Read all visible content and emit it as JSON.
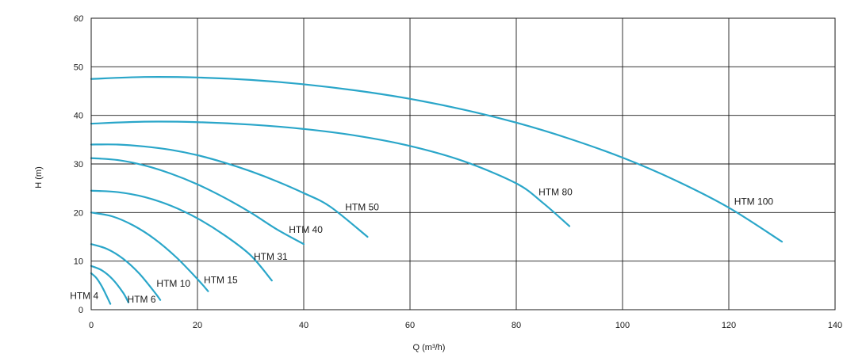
{
  "chart_data": {
    "type": "line",
    "title": "",
    "xlabel": "Q (m³/h)",
    "ylabel": "H (m)",
    "xlim": [
      0,
      140
    ],
    "ylim": [
      0,
      60
    ],
    "x_ticks": [
      0,
      20,
      40,
      60,
      80,
      100,
      120,
      140
    ],
    "y_ticks": [
      0,
      10,
      20,
      30,
      40,
      50,
      60
    ],
    "x_tick_labels": [
      "0",
      "20",
      "40",
      "60",
      "80",
      "100",
      "120",
      "140"
    ],
    "y_tick_labels": [
      "0",
      "10",
      "20",
      "30",
      "40",
      "50",
      "60"
    ],
    "grid": true,
    "legend": "none",
    "line_color": "#2aa6c9",
    "series": [
      {
        "name": "HTM 4",
        "x": [
          0,
          1,
          2,
          3,
          3.6
        ],
        "y": [
          7.5,
          6.5,
          4.8,
          2.6,
          1.2
        ]
      },
      {
        "name": "HTM 6",
        "x": [
          0,
          2,
          4,
          6,
          7
        ],
        "y": [
          9,
          8.1,
          6.3,
          3.5,
          1.5
        ]
      },
      {
        "name": "HTM 10",
        "x": [
          0,
          3,
          6,
          9,
          12,
          13
        ],
        "y": [
          13.5,
          12.5,
          10.5,
          7.5,
          3.5,
          2
        ]
      },
      {
        "name": "HTM 15",
        "x": [
          0,
          4,
          8,
          12,
          16,
          20,
          22
        ],
        "y": [
          20,
          19.2,
          17.3,
          14.5,
          10.8,
          6.3,
          3.8
        ]
      },
      {
        "name": "HTM 31",
        "x": [
          0,
          5,
          10,
          15,
          20,
          25,
          30,
          34
        ],
        "y": [
          24.5,
          24.2,
          23.2,
          21.4,
          18.8,
          15.4,
          11.2,
          6
        ]
      },
      {
        "name": "HTM 40",
        "x": [
          0,
          5,
          10,
          15,
          20,
          25,
          30,
          35,
          40
        ],
        "y": [
          31.2,
          30.8,
          29.7,
          28,
          25.8,
          23.1,
          20,
          16.5,
          13.5
        ]
      },
      {
        "name": "HTM 50",
        "x": [
          0,
          5,
          10,
          15,
          20,
          25,
          30,
          35,
          40,
          45,
          52
        ],
        "y": [
          34,
          34,
          33.6,
          32.9,
          31.8,
          30.3,
          28.5,
          26.4,
          24,
          21.2,
          15
        ]
      },
      {
        "name": "HTM 80",
        "x": [
          0,
          10,
          20,
          30,
          40,
          50,
          60,
          70,
          80,
          85,
          90
        ],
        "y": [
          38.3,
          38.7,
          38.6,
          38.1,
          37.2,
          35.8,
          33.7,
          30.6,
          26,
          22,
          17.2
        ]
      },
      {
        "name": "HTM 100",
        "x": [
          0,
          10,
          20,
          30,
          40,
          50,
          60,
          70,
          80,
          90,
          100,
          110,
          120,
          130
        ],
        "y": [
          47.5,
          47.9,
          47.8,
          47.3,
          46.4,
          45.1,
          43.4,
          41.2,
          38.5,
          35.2,
          31.3,
          26.6,
          21,
          14
        ]
      }
    ]
  }
}
